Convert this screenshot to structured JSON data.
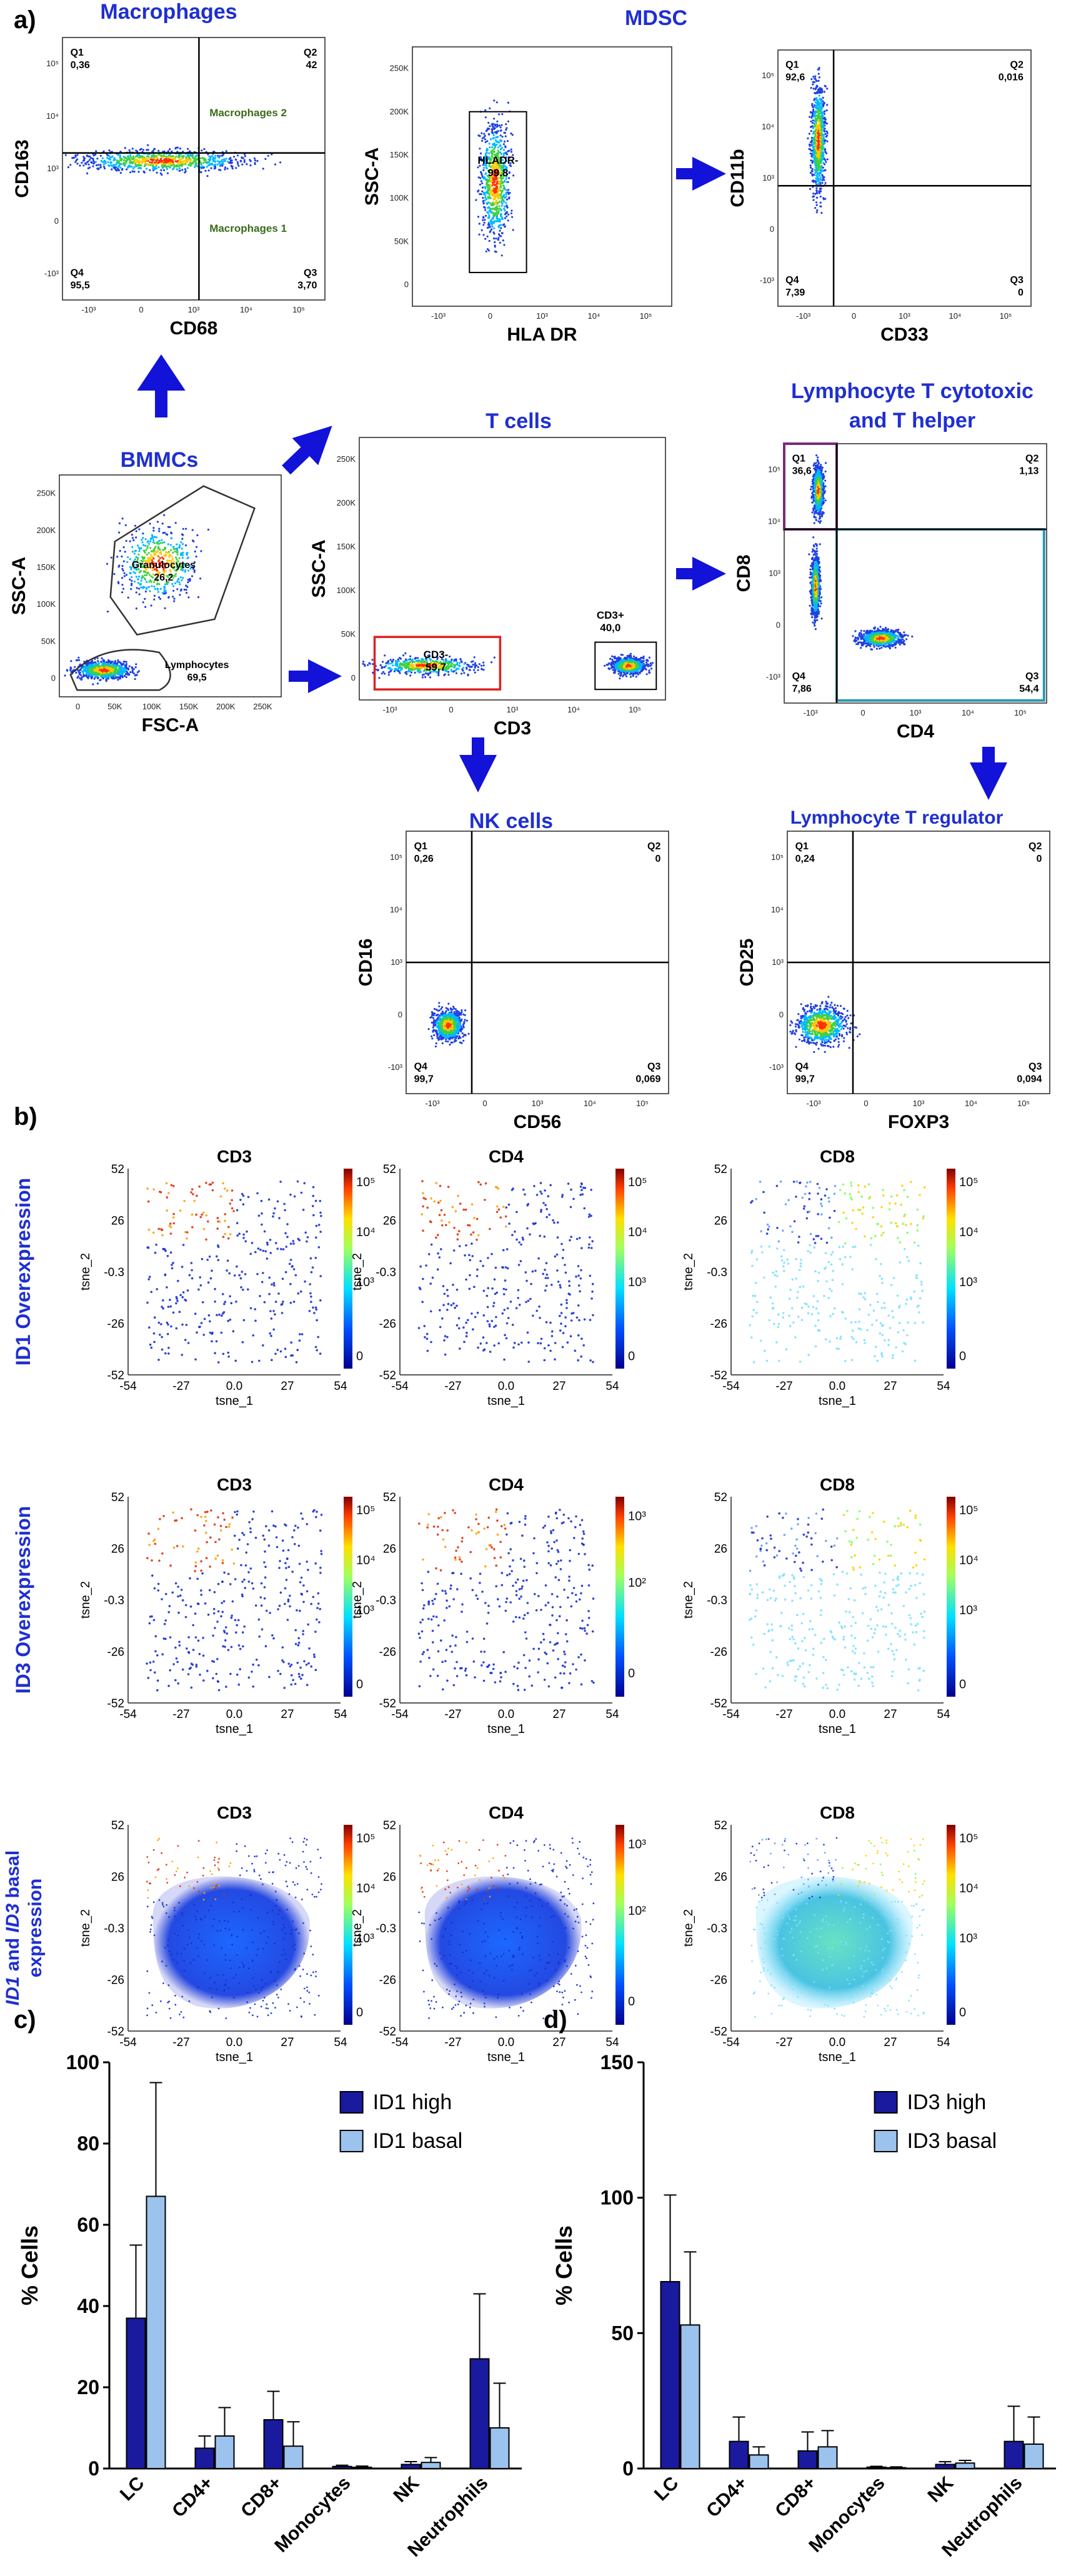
{
  "panel_labels": {
    "a": "a)",
    "b": "b)",
    "c": "c)",
    "d": "d)"
  },
  "section_a": {
    "titles": {
      "macrophages": "Macrophages",
      "mdsc": "MDSC",
      "t_cells": "T cells",
      "bmmcs": "BMMCs",
      "cytotoxic_1": "Lymphocyte T cytotoxic",
      "cytotoxic_2": "and T helper",
      "nk_cells": "NK cells",
      "treg": "Lymphocyte T regulator"
    },
    "plots": [
      {
        "id": "macrophages",
        "xlabel": "CD68",
        "ylabel": "CD163",
        "type": "quadrant",
        "xticks": [
          "-10³",
          "0",
          "10³",
          "10⁴",
          "10⁵"
        ],
        "yticks": [
          "10⁵",
          "10⁴",
          "10³",
          "0",
          "-10³"
        ],
        "quadrants": {
          "Q1": "0,36",
          "Q2": "42",
          "Q3": "3,70",
          "Q4": "95,5"
        },
        "notes": [
          "Macrophages 2",
          "Macrophages 1"
        ]
      },
      {
        "id": "mdsc",
        "xlabel": "HLA DR",
        "ylabel": "SSC-A",
        "type": "gate",
        "xticks": [
          "-10³",
          "0",
          "10³",
          "10⁴",
          "10⁵"
        ],
        "yticks": [
          "250K",
          "200K",
          "150K",
          "100K",
          "50K",
          "0"
        ],
        "gates": [
          {
            "name": "HLADR-",
            "value": "99.8"
          }
        ]
      },
      {
        "id": "cd11b",
        "xlabel": "CD33",
        "ylabel": "CD11b",
        "type": "quadrant",
        "xticks": [
          "-10³",
          "0",
          "10³",
          "10⁴",
          "10⁵"
        ],
        "yticks": [
          "10⁵",
          "10⁴",
          "10³",
          "0",
          "-10³"
        ],
        "quadrants": {
          "Q1": "92,6",
          "Q2": "0,016",
          "Q3": "0",
          "Q4": "7,39"
        }
      },
      {
        "id": "bmmcs",
        "xlabel": "FSC-A",
        "ylabel": "SSC-A",
        "type": "gate",
        "xticks": [
          "0",
          "50K",
          "100K",
          "150K",
          "200K",
          "250K"
        ],
        "yticks": [
          "250K",
          "200K",
          "150K",
          "100K",
          "50K",
          "0"
        ],
        "gates": [
          {
            "name": "Granulocytes",
            "value": "26,2"
          },
          {
            "name": "Lymphocytes",
            "value": "69,5"
          }
        ]
      },
      {
        "id": "tcells",
        "xlabel": "CD3",
        "ylabel": "SSC-A",
        "type": "gate",
        "xticks": [
          "-10³",
          "0",
          "10³",
          "10⁴",
          "10⁵"
        ],
        "yticks": [
          "250K",
          "200K",
          "150K",
          "100K",
          "50K",
          "0"
        ],
        "gates": [
          {
            "name": "CD3-",
            "value": "59,7"
          },
          {
            "name": "CD3+",
            "value": "40,0"
          }
        ]
      },
      {
        "id": "cd8cd4",
        "xlabel": "CD4",
        "ylabel": "CD8",
        "type": "quadrant",
        "xticks": [
          "-10³",
          "0",
          "10³",
          "10⁴",
          "10⁵"
        ],
        "yticks": [
          "10⁵",
          "10⁴",
          "10³",
          "0",
          "-10³"
        ],
        "quadrants": {
          "Q1": "36,6",
          "Q2": "1,13",
          "Q3": "54,4",
          "Q4": "7,86"
        }
      },
      {
        "id": "nk",
        "xlabel": "CD56",
        "ylabel": "CD16",
        "type": "quadrant",
        "xticks": [
          "-10³",
          "0",
          "10³",
          "10⁴",
          "10⁵"
        ],
        "yticks": [
          "10⁵",
          "10⁴",
          "10³",
          "0",
          "-10³"
        ],
        "quadrants": {
          "Q1": "0,26",
          "Q2": "0",
          "Q3": "0,069",
          "Q4": "99,7"
        }
      },
      {
        "id": "treg",
        "xlabel": "FOXP3",
        "ylabel": "CD25",
        "type": "quadrant",
        "xticks": [
          "-10³",
          "0",
          "10³",
          "10⁴",
          "10⁵"
        ],
        "yticks": [
          "10⁵",
          "10⁴",
          "10³",
          "0",
          "-10³"
        ],
        "quadrants": {
          "Q1": "0,24",
          "Q2": "0",
          "Q3": "0,094",
          "Q4": "99,7"
        }
      }
    ]
  },
  "section_b": {
    "x_label": "tsne_1",
    "y_label": "tsne_2",
    "x_ticks": [
      "-54",
      "-27",
      "0.0",
      "27",
      "54"
    ],
    "y_ticks": [
      "52",
      "26",
      "-0.3",
      "-26",
      "-52"
    ],
    "rows": [
      {
        "label_parts": [
          "ID1 Overexpression"
        ],
        "plots": [
          {
            "title": "CD3",
            "scale": [
              "10⁵",
              "10⁴",
              "10³",
              "0"
            ]
          },
          {
            "title": "CD4",
            "scale": [
              "10⁵",
              "10⁴",
              "10³",
              "0"
            ]
          },
          {
            "title": "CD8",
            "scale": [
              "10⁵",
              "10⁴",
              "10³",
              "0"
            ]
          }
        ]
      },
      {
        "label_parts": [
          "ID3 Overexpression"
        ],
        "plots": [
          {
            "title": "CD3",
            "scale": [
              "10⁵",
              "10⁴",
              "10³",
              "0"
            ]
          },
          {
            "title": "CD4",
            "scale": [
              "10³",
              "10²",
              "0"
            ]
          },
          {
            "title": "CD8",
            "scale": [
              "10⁵",
              "10⁴",
              "10³",
              "0"
            ]
          }
        ]
      },
      {
        "label_parts": [
          "ID1",
          " and ",
          "ID3",
          " basal",
          "expression"
        ],
        "plots": [
          {
            "title": "CD3",
            "scale": [
              "10⁵",
              "10⁴",
              "10³",
              "0"
            ]
          },
          {
            "title": "CD4",
            "scale": [
              "10³",
              "10²",
              "0"
            ]
          },
          {
            "title": "CD8",
            "scale": [
              "10⁵",
              "10⁴",
              "10³",
              "0"
            ]
          }
        ]
      }
    ]
  },
  "colors": {
    "dark_bar": "#1a1a9e",
    "light_bar": "#9cc3ee",
    "title_blue": "#1f2fd0",
    "macro_note": "#3a6b1a"
  },
  "chart_data": [
    {
      "type": "bar",
      "title": "",
      "panel": "c)",
      "categories": [
        "LC",
        "CD4+",
        "CD8+",
        "Monocytes",
        "NK",
        "Neutrophils"
      ],
      "series": [
        {
          "name": "ID1 high",
          "values": [
            37,
            5,
            12,
            0.5,
            1,
            27
          ],
          "errors": [
            18,
            3,
            7,
            0.3,
            0.7,
            16
          ]
        },
        {
          "name": "ID1 basal",
          "values": [
            67,
            8,
            5.5,
            0.3,
            1.5,
            10
          ],
          "errors": [
            28,
            7,
            6,
            0.3,
            1.2,
            11
          ]
        }
      ],
      "xlabel": "",
      "ylabel": "% Cells",
      "ylim": [
        0,
        100
      ],
      "yticks": [
        "0",
        "20",
        "40",
        "60",
        "80",
        "100"
      ],
      "legend": "right"
    },
    {
      "type": "bar",
      "title": "",
      "panel": "d)",
      "categories": [
        "LC",
        "CD4+",
        "CD8+",
        "Monocytes",
        "NK",
        "Neutrophils"
      ],
      "series": [
        {
          "name": "ID3 high",
          "values": [
            69,
            10,
            6.5,
            0.5,
            1.5,
            10
          ],
          "errors": [
            32,
            9,
            7,
            0.3,
            1,
            13
          ]
        },
        {
          "name": "ID3 basal",
          "values": [
            53,
            5,
            8,
            0.3,
            2,
            9
          ],
          "errors": [
            27,
            3,
            6,
            0.3,
            1,
            10
          ]
        }
      ],
      "xlabel": "",
      "ylabel": "% Cells",
      "ylim": [
        0,
        150
      ],
      "yticks": [
        "0",
        "50",
        "100",
        "150"
      ],
      "legend": "right"
    }
  ]
}
